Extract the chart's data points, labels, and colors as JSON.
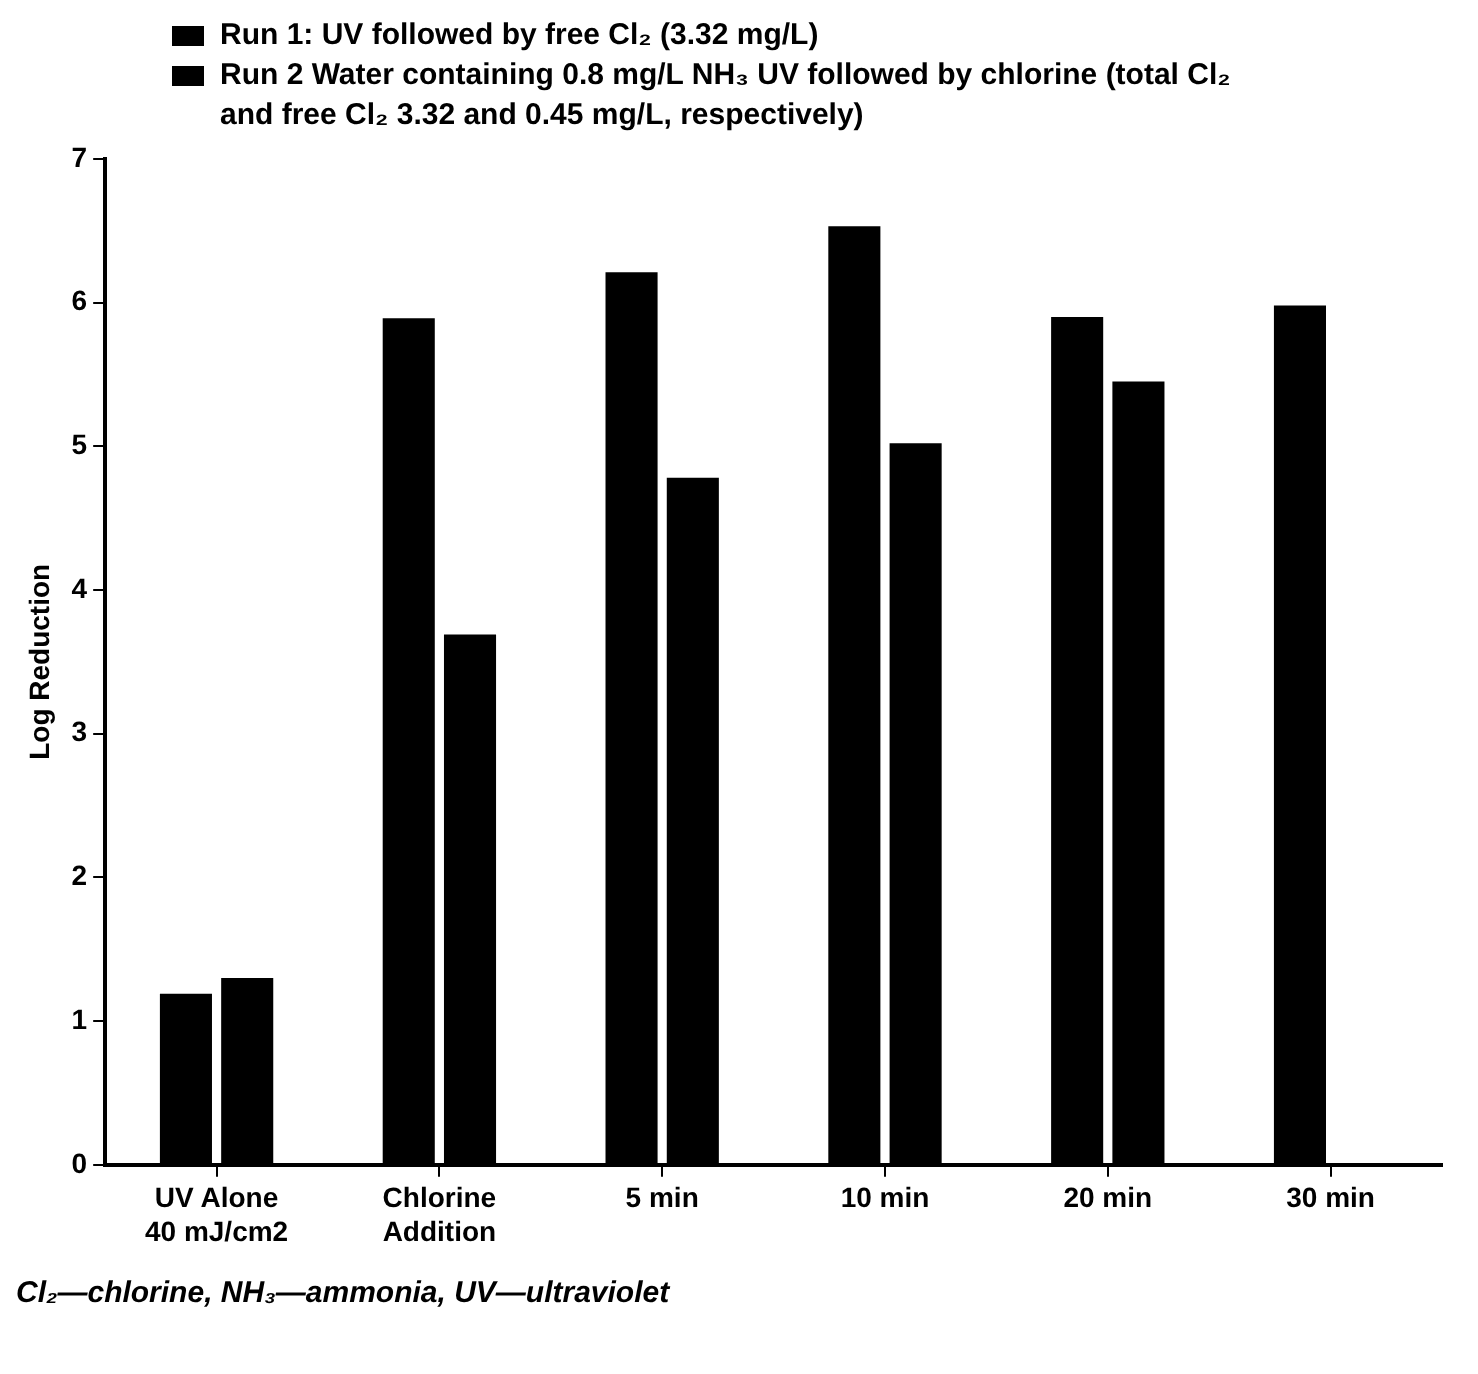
{
  "chart_data": {
    "type": "bar",
    "ylabel": "Log Reduction",
    "categories": [
      "UV Alone 40 mJ/cm2",
      "Chlorine Addition",
      "5 min",
      "10 min",
      "20 min",
      "30 min"
    ],
    "series": [
      {
        "name": "Run 1: UV followed by free Cl₂ (3.32 mg/L)",
        "color": "#000000",
        "values": [
          1.19,
          5.89,
          6.21,
          6.53,
          5.9,
          5.98
        ]
      },
      {
        "name": "Run 2 Water containing 0.8 mg/L NH₃ UV followed by chlorine (total Cl₂ and free Cl₂ 3.32 and 0.45 mg/L, respectively)",
        "color": "#000000",
        "values": [
          1.3,
          3.69,
          4.78,
          5.02,
          5.45,
          null
        ]
      }
    ],
    "ylim": [
      0,
      7
    ],
    "yticks": [
      0,
      1,
      2,
      3,
      4,
      5,
      6,
      7
    ],
    "grid": false,
    "legend": "top",
    "annotations": [
      "Cl₂—chlorine, NH₃—ammonia, UV—ultraviolet"
    ]
  }
}
